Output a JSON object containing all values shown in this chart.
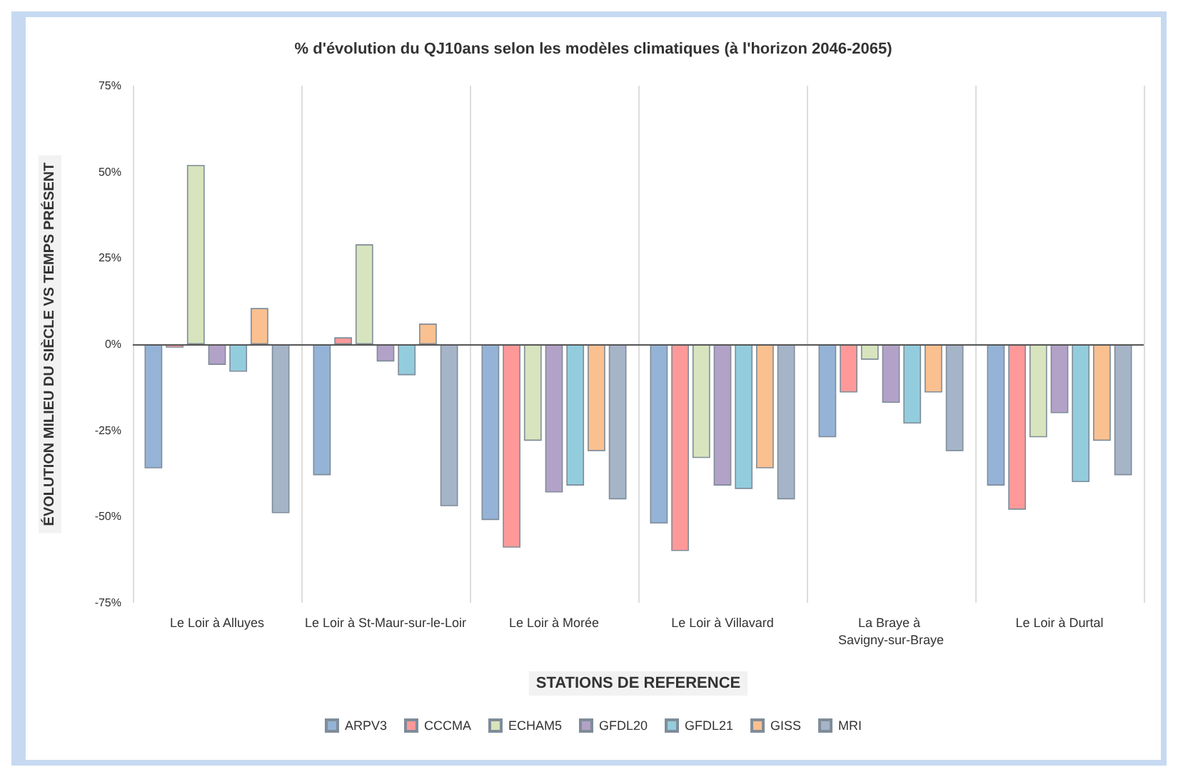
{
  "chart_data": {
    "type": "bar",
    "title": "% d'évolution du QJ10ans selon les modèles climatiques (à l'horizon 2046-2065)",
    "xlabel": "STATIONS DE REFERENCE",
    "ylabel": "ÉVOLUTION MILIEU DU SIÈCLE VS TEMPS PRÉSENT",
    "categories": [
      "Le Loir à Alluyes",
      "Le Loir à St-Maur-sur-le-Loir",
      "Le Loir à Morée",
      "Le Loir à Villavard",
      "La Braye à Savigny-sur-Braye",
      "Le Loir à Durtal"
    ],
    "series": [
      {
        "name": "ARPV3",
        "color": "#95b3d7",
        "values": [
          -36,
          -38,
          -51,
          -52,
          -27,
          -41
        ]
      },
      {
        "name": "CCCMA",
        "color": "#ff9999",
        "values": [
          -1,
          2,
          -59,
          -60,
          -14,
          -48
        ]
      },
      {
        "name": "ECHAM5",
        "color": "#d7e4bd",
        "values": [
          52,
          29,
          -28,
          -33,
          -4.5,
          -27
        ]
      },
      {
        "name": "GFDL20",
        "color": "#b3a2c7",
        "values": [
          -6,
          -5,
          -43,
          -41,
          -17,
          -20
        ]
      },
      {
        "name": "GFDL21",
        "color": "#93cddd",
        "values": [
          -8,
          -9,
          -41,
          -42,
          -23,
          -40
        ]
      },
      {
        "name": "GISS",
        "color": "#fac090",
        "values": [
          10.5,
          6,
          -31,
          -36,
          -14,
          -28
        ]
      },
      {
        "name": "MRI",
        "color": "#a6b4c8",
        "values": [
          -49,
          -47,
          -45,
          -45,
          -31,
          -38
        ]
      }
    ],
    "ylim": [
      -75,
      75
    ],
    "yticks": [
      {
        "value": -75,
        "label": "-75%"
      },
      {
        "value": -50,
        "label": "-50%"
      },
      {
        "value": -25,
        "label": "-25%"
      },
      {
        "value": 0,
        "label": "0%"
      },
      {
        "value": 25,
        "label": "25%"
      },
      {
        "value": 50,
        "label": "50%"
      },
      {
        "value": 75,
        "label": "75%"
      }
    ],
    "grid": "x",
    "legend": "bottom"
  }
}
